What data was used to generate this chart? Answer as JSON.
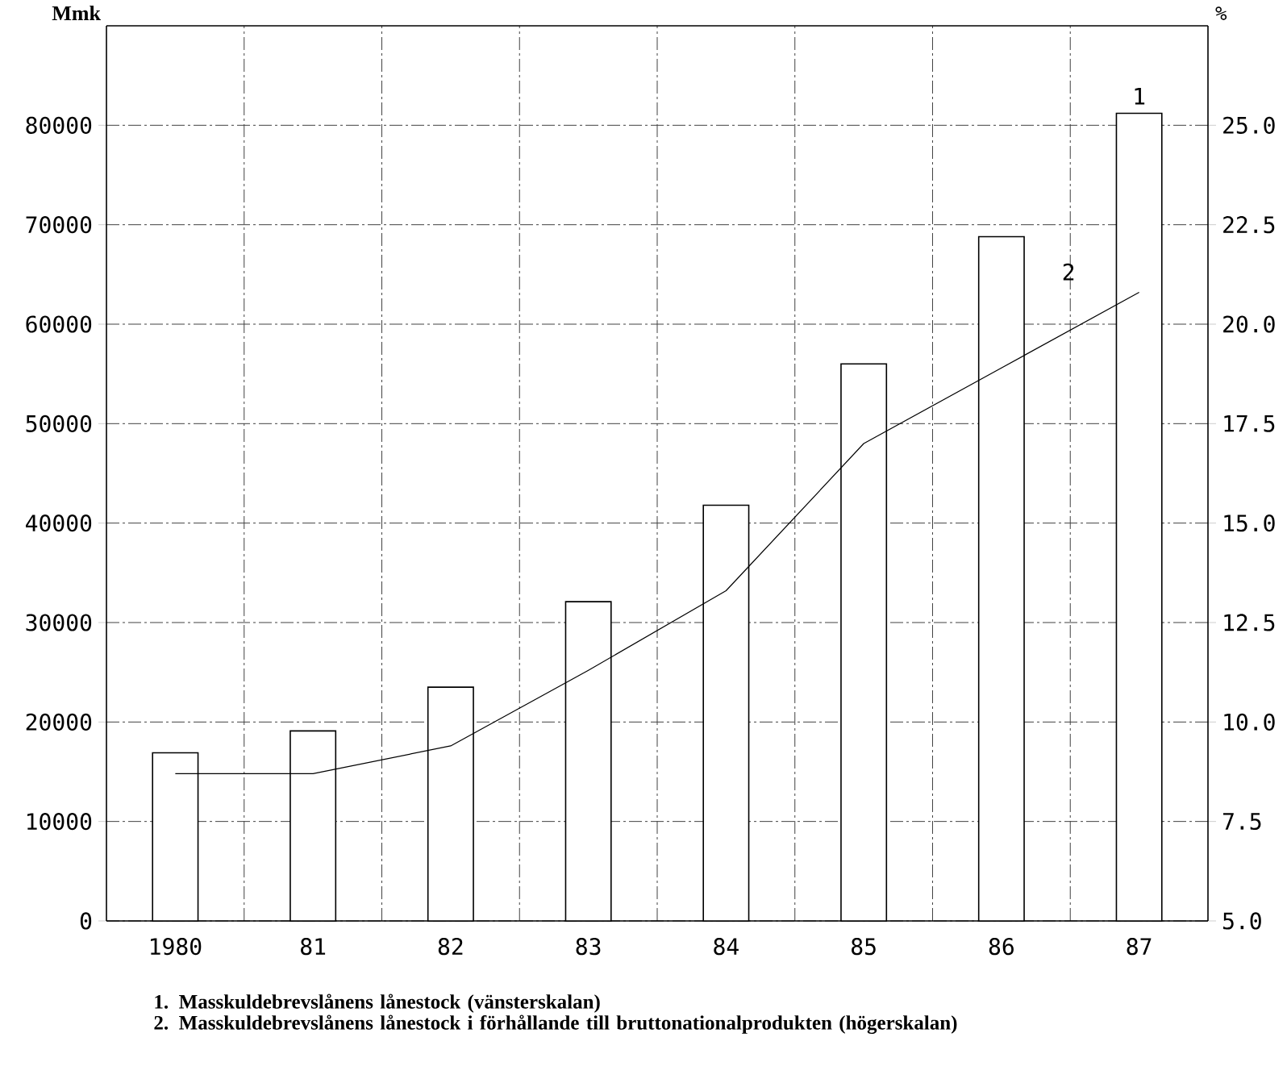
{
  "chart_data": {
    "type": "bar",
    "ylabel": "Mmk",
    "y2label": "%",
    "categories": [
      "1980",
      "81",
      "82",
      "83",
      "84",
      "85",
      "86",
      "87"
    ],
    "series": [
      {
        "color": "#000000",
        "values": [
          16900,
          19100,
          23500,
          32100,
          41800,
          56000,
          68800,
          81200
        ]
      },
      {
        "type": "line",
        "axis": "y2",
        "color": "#000000",
        "values": [
          8.7,
          8.7,
          9.4,
          11.3,
          13.3,
          17.0,
          18.9,
          20.8
        ]
      }
    ],
    "ylim": [
      0,
      90000
    ],
    "yticks": [
      0,
      10000,
      20000,
      30000,
      40000,
      50000,
      60000,
      70000,
      80000
    ],
    "y2lim": [
      5,
      27.5
    ],
    "y2ticks": [
      {
        "value": 5,
        "label": "5.0"
      },
      {
        "value": 7.5,
        "label": "7.5"
      },
      {
        "value": 10,
        "label": "10.0"
      },
      {
        "value": 12.5,
        "label": "12.5"
      },
      {
        "value": 15,
        "label": "15.0"
      },
      {
        "value": 17.5,
        "label": "17.5"
      },
      {
        "value": 20,
        "label": "20.0"
      },
      {
        "value": 22.5,
        "label": "22.5"
      },
      {
        "value": 25,
        "label": "25.0"
      }
    ],
    "grid": true,
    "marker": "none",
    "line_style": "solid",
    "annotations": [
      {
        "text": "1",
        "x": "87",
        "y": 81200
      },
      "2",
      "1. Masskuldebrevslånens lånestock (vänsterskalan)",
      "2. Masskuldebrevslånens lånestock i förhållande till bruttonationalprodukten (högerskalan)"
    ]
  }
}
